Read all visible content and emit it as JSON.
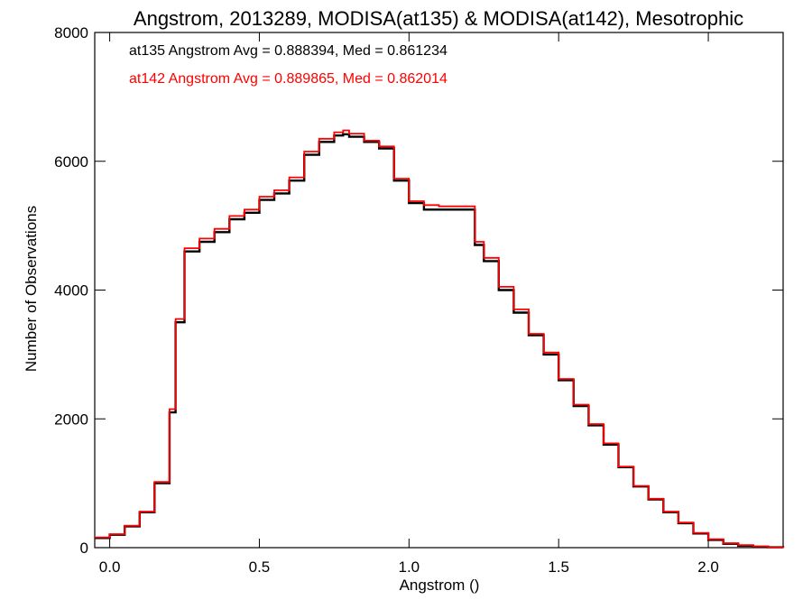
{
  "chart_data": {
    "type": "line",
    "title": "Angstrom, 2013289, MODISA(at135) & MODISA(at142), Mesotrophic",
    "xlabel": "Angstrom ()",
    "ylabel": "Number of Observations",
    "xlim": [
      -0.05,
      2.25
    ],
    "ylim": [
      0,
      8000
    ],
    "x_ticks": [
      0.0,
      0.5,
      1.0,
      1.5,
      2.0
    ],
    "x_tick_labels": [
      "0.0",
      "0.5",
      "1.0",
      "1.5",
      "2.0"
    ],
    "y_ticks": [
      0,
      2000,
      4000,
      6000,
      8000
    ],
    "y_tick_labels": [
      "0",
      "2000",
      "4000",
      "6000",
      "8000"
    ],
    "annotations": [
      {
        "text": "at135 Angstrom Avg = 0.888394, Med = 0.861234",
        "color": "#000000"
      },
      {
        "text": "at142 Angstrom Avg = 0.889865, Med = 0.862014",
        "color": "#ff0000"
      }
    ],
    "x": [
      -0.05,
      0.0,
      0.05,
      0.1,
      0.15,
      0.2,
      0.22,
      0.25,
      0.3,
      0.35,
      0.4,
      0.45,
      0.5,
      0.55,
      0.6,
      0.65,
      0.7,
      0.75,
      0.78,
      0.8,
      0.85,
      0.9,
      0.95,
      1.0,
      1.05,
      1.1,
      1.15,
      1.2,
      1.22,
      1.25,
      1.3,
      1.35,
      1.4,
      1.45,
      1.5,
      1.55,
      1.6,
      1.65,
      1.7,
      1.75,
      1.8,
      1.85,
      1.9,
      1.95,
      2.0,
      2.05,
      2.1,
      2.15,
      2.2,
      2.25
    ],
    "series": [
      {
        "name": "at135",
        "color": "#000000",
        "values": [
          150,
          200,
          330,
          550,
          1000,
          2100,
          3500,
          4600,
          4750,
          4900,
          5100,
          5200,
          5400,
          5500,
          5700,
          6100,
          6300,
          6400,
          6420,
          6380,
          6300,
          6200,
          5700,
          5350,
          5250,
          5250,
          5250,
          5250,
          4700,
          4450,
          4000,
          3650,
          3300,
          3000,
          2600,
          2200,
          1900,
          1600,
          1250,
          950,
          750,
          550,
          380,
          220,
          120,
          60,
          30,
          15,
          5,
          0
        ]
      },
      {
        "name": "at142",
        "color": "#ff0000",
        "values": [
          160,
          210,
          340,
          560,
          1020,
          2150,
          3550,
          4650,
          4800,
          4950,
          5150,
          5250,
          5450,
          5550,
          5750,
          6150,
          6350,
          6450,
          6480,
          6430,
          6320,
          6230,
          5730,
          5380,
          5320,
          5300,
          5300,
          5300,
          4750,
          4500,
          4050,
          3700,
          3320,
          3030,
          2620,
          2220,
          1920,
          1620,
          1260,
          960,
          760,
          560,
          390,
          230,
          130,
          70,
          40,
          20,
          5,
          0
        ]
      }
    ]
  }
}
